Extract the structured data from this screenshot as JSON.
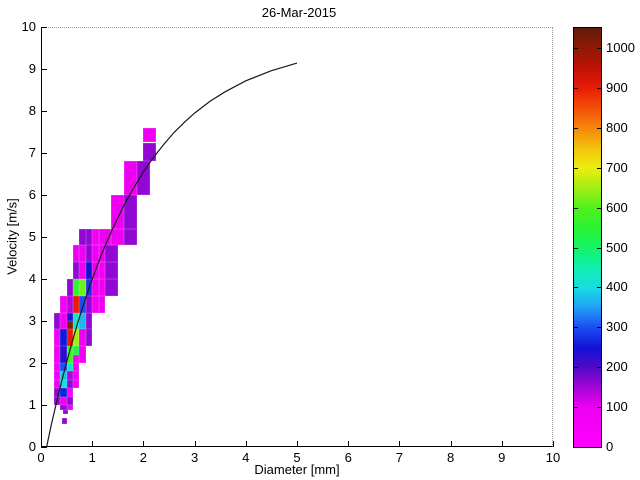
{
  "figure": {
    "title": "26-Mar-2015",
    "xlabel": "Diameter [mm]",
    "ylabel": "Velocity [m/s]"
  },
  "chart_data": {
    "type": "heatmap",
    "title": "26-Mar-2015",
    "xlabel": "Diameter [mm]",
    "ylabel": "Velocity [m/s]",
    "xlim": [
      0,
      10
    ],
    "ylim": [
      0,
      10
    ],
    "xticks": [
      0,
      1,
      2,
      3,
      4,
      5,
      6,
      7,
      8,
      9,
      10
    ],
    "yticks": [
      0,
      1,
      2,
      3,
      4,
      5,
      6,
      7,
      8,
      9,
      10
    ],
    "grid": false,
    "colorbar": {
      "min": 0,
      "max": 1050,
      "ticks": [
        0,
        100,
        200,
        300,
        400,
        500,
        600,
        700,
        800,
        900,
        1000
      ],
      "position": "right",
      "stops": [
        [
          0,
          "#ff00ff"
        ],
        [
          100,
          "#ee00f0"
        ],
        [
          150,
          "#a306d6"
        ],
        [
          200,
          "#4e09c6"
        ],
        [
          250,
          "#1213d8"
        ],
        [
          300,
          "#1c4ef2"
        ],
        [
          350,
          "#22a0f5"
        ],
        [
          400,
          "#17dde0"
        ],
        [
          450,
          "#12efae"
        ],
        [
          500,
          "#13f468"
        ],
        [
          550,
          "#2af434"
        ],
        [
          600,
          "#52f01c"
        ],
        [
          650,
          "#a3ef12"
        ],
        [
          700,
          "#eded0e"
        ],
        [
          750,
          "#f2c20c"
        ],
        [
          800,
          "#f5860a"
        ],
        [
          850,
          "#f24f08"
        ],
        [
          900,
          "#ea1a06"
        ],
        [
          950,
          "#bd1205"
        ],
        [
          1000,
          "#8f1a05"
        ],
        [
          1050,
          "#5e1a0a"
        ]
      ]
    },
    "cells_format": [
      "d_min_mm",
      "d_max_mm",
      "v_min_ms",
      "v_max_ms",
      "count"
    ],
    "cells": [
      [
        0.4,
        0.5,
        0.55,
        0.68,
        160
      ],
      [
        0.42,
        0.53,
        0.78,
        0.88,
        160
      ],
      [
        0.375,
        0.5,
        0.88,
        1.0,
        160
      ],
      [
        0.5,
        0.625,
        0.88,
        1.0,
        85
      ],
      [
        0.25,
        0.375,
        1.0,
        1.2,
        160
      ],
      [
        0.375,
        0.5,
        1.0,
        1.2,
        85
      ],
      [
        0.5,
        0.625,
        1.0,
        1.2,
        160
      ],
      [
        0.25,
        0.375,
        1.2,
        1.4,
        160
      ],
      [
        0.375,
        0.5,
        1.2,
        1.4,
        260
      ],
      [
        0.5,
        0.625,
        1.2,
        1.4,
        85
      ],
      [
        0.25,
        0.375,
        1.4,
        1.6,
        85
      ],
      [
        0.375,
        0.5,
        1.4,
        1.6,
        400
      ],
      [
        0.5,
        0.625,
        1.4,
        1.6,
        160
      ],
      [
        0.625,
        0.75,
        1.4,
        1.6,
        80
      ],
      [
        0.25,
        0.375,
        1.6,
        1.8,
        80
      ],
      [
        0.375,
        0.5,
        1.6,
        1.8,
        380
      ],
      [
        0.5,
        0.625,
        1.6,
        1.8,
        140
      ],
      [
        0.625,
        0.75,
        1.6,
        1.8,
        80
      ],
      [
        0.25,
        0.375,
        1.8,
        2.0,
        80
      ],
      [
        0.375,
        0.5,
        1.8,
        2.0,
        300
      ],
      [
        0.5,
        0.625,
        1.8,
        2.0,
        420
      ],
      [
        0.625,
        0.75,
        1.8,
        2.0,
        80
      ],
      [
        0.25,
        0.375,
        2.0,
        2.4,
        80
      ],
      [
        0.375,
        0.5,
        2.0,
        2.4,
        230
      ],
      [
        0.5,
        0.625,
        2.0,
        2.4,
        580
      ],
      [
        0.625,
        0.75,
        2.2,
        2.4,
        520
      ],
      [
        0.625,
        0.75,
        2.0,
        2.2,
        85
      ],
      [
        0.75,
        0.875,
        2.0,
        2.4,
        75
      ],
      [
        0.25,
        0.375,
        2.4,
        2.8,
        80
      ],
      [
        0.375,
        0.5,
        2.4,
        2.8,
        255
      ],
      [
        0.5,
        0.625,
        2.4,
        2.8,
        900
      ],
      [
        0.625,
        0.75,
        2.4,
        2.8,
        650
      ],
      [
        0.75,
        0.875,
        2.4,
        2.8,
        85
      ],
      [
        0.875,
        1.0,
        2.4,
        2.8,
        160
      ],
      [
        0.25,
        0.375,
        2.8,
        3.2,
        160
      ],
      [
        0.375,
        0.5,
        2.8,
        3.2,
        85
      ],
      [
        0.5,
        0.625,
        2.8,
        3.0,
        1010
      ],
      [
        0.5,
        0.625,
        3.0,
        3.2,
        240
      ],
      [
        0.625,
        0.75,
        2.8,
        3.2,
        420
      ],
      [
        0.75,
        0.875,
        2.8,
        3.2,
        370
      ],
      [
        0.875,
        1.0,
        2.8,
        3.2,
        160
      ],
      [
        0.375,
        0.5,
        3.2,
        3.6,
        80
      ],
      [
        0.5,
        0.625,
        3.2,
        3.6,
        140
      ],
      [
        0.625,
        0.75,
        3.2,
        3.6,
        900
      ],
      [
        0.75,
        0.875,
        3.2,
        3.6,
        300
      ],
      [
        0.875,
        1.0,
        3.2,
        3.6,
        160
      ],
      [
        1.0,
        1.125,
        3.2,
        3.6,
        80
      ],
      [
        1.125,
        1.25,
        3.2,
        3.6,
        75
      ],
      [
        0.5,
        0.625,
        3.6,
        4.0,
        160
      ],
      [
        0.625,
        0.75,
        3.6,
        4.0,
        560
      ],
      [
        0.75,
        0.875,
        3.6,
        4.0,
        620
      ],
      [
        0.875,
        1.0,
        3.6,
        4.0,
        280
      ],
      [
        1.0,
        1.125,
        3.6,
        4.0,
        80
      ],
      [
        1.125,
        1.25,
        3.6,
        4.0,
        80
      ],
      [
        1.25,
        1.5,
        3.6,
        4.0,
        160
      ],
      [
        0.625,
        0.75,
        4.0,
        4.4,
        160
      ],
      [
        0.75,
        0.875,
        4.0,
        4.4,
        90
      ],
      [
        0.875,
        1.0,
        4.0,
        4.4,
        250
      ],
      [
        1.0,
        1.125,
        4.0,
        4.4,
        90
      ],
      [
        1.125,
        1.25,
        4.0,
        4.4,
        90
      ],
      [
        1.25,
        1.5,
        4.0,
        4.4,
        160
      ],
      [
        0.625,
        0.75,
        4.4,
        4.8,
        90
      ],
      [
        0.75,
        0.875,
        4.4,
        4.8,
        90
      ],
      [
        0.875,
        1.0,
        4.4,
        4.8,
        160
      ],
      [
        1.0,
        1.125,
        4.4,
        4.8,
        90
      ],
      [
        1.125,
        1.25,
        4.4,
        4.8,
        90
      ],
      [
        1.25,
        1.5,
        4.4,
        4.8,
        160
      ],
      [
        0.75,
        0.875,
        4.8,
        5.2,
        160
      ],
      [
        0.875,
        1.0,
        4.8,
        5.2,
        160
      ],
      [
        1.0,
        1.125,
        4.8,
        5.2,
        85
      ],
      [
        1.125,
        1.375,
        4.8,
        5.2,
        90
      ],
      [
        1.375,
        1.625,
        4.8,
        5.2,
        90
      ],
      [
        1.625,
        1.875,
        4.8,
        5.2,
        160
      ],
      [
        1.375,
        1.625,
        5.2,
        6.0,
        90
      ],
      [
        1.625,
        1.875,
        5.2,
        6.0,
        160
      ],
      [
        1.625,
        1.875,
        6.0,
        6.8,
        90
      ],
      [
        1.875,
        2.125,
        6.0,
        6.8,
        160
      ],
      [
        2.0,
        2.25,
        7.25,
        7.6,
        90
      ],
      [
        2.0,
        2.25,
        6.8,
        7.25,
        160
      ]
    ],
    "curve": {
      "name": "terminal-velocity-curve",
      "color": "#1a1a1a",
      "points": [
        [
          0.11,
          0
        ],
        [
          0.2,
          0.52
        ],
        [
          0.3,
          1.05
        ],
        [
          0.4,
          1.55
        ],
        [
          0.5,
          2.02
        ],
        [
          0.6,
          2.46
        ],
        [
          0.7,
          2.88
        ],
        [
          0.8,
          3.28
        ],
        [
          0.9,
          3.65
        ],
        [
          1.0,
          4.0
        ],
        [
          1.2,
          4.64
        ],
        [
          1.4,
          5.2
        ],
        [
          1.6,
          5.71
        ],
        [
          1.8,
          6.15
        ],
        [
          2.0,
          6.55
        ],
        [
          2.2,
          6.9
        ],
        [
          2.4,
          7.21
        ],
        [
          2.6,
          7.49
        ],
        [
          2.8,
          7.73
        ],
        [
          3.0,
          7.95
        ],
        [
          3.3,
          8.23
        ],
        [
          3.6,
          8.46
        ],
        [
          4.0,
          8.72
        ],
        [
          4.5,
          8.96
        ],
        [
          5.0,
          9.14
        ]
      ]
    }
  }
}
